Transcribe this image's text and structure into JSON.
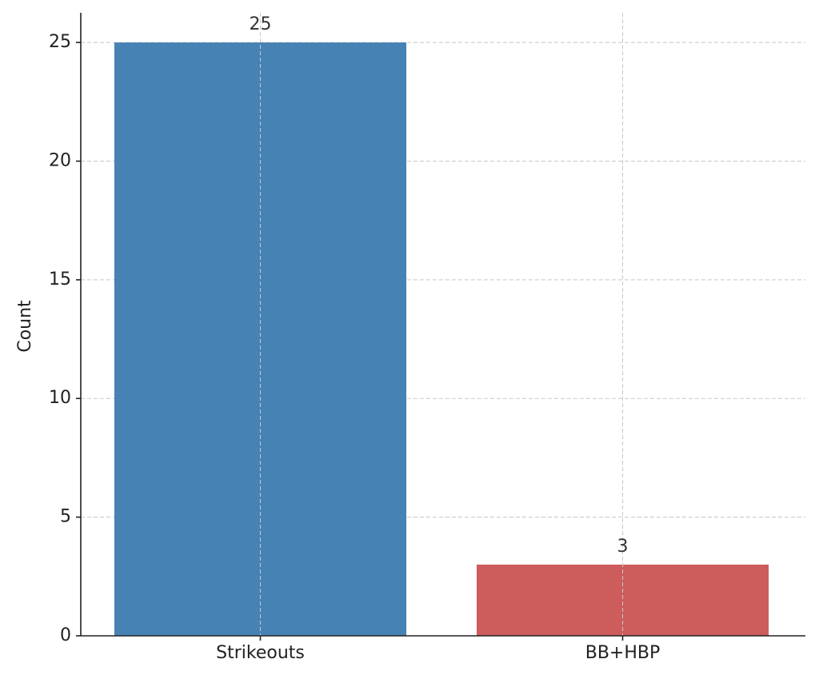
{
  "chart_data": {
    "type": "bar",
    "ylabel": "Count",
    "categories": [
      "Strikeouts",
      "BB+HBP"
    ],
    "values": [
      25,
      3
    ],
    "colors": [
      "#4682b4",
      "#cd5c5c"
    ],
    "ylim": [
      0,
      26.25
    ],
    "yticks": [
      0,
      5,
      10,
      15,
      20,
      25
    ],
    "grid": true
  }
}
